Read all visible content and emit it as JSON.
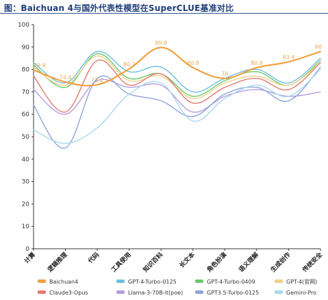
{
  "title": "图：Baichuan 4与国外代表性模型在SuperCLUE基准对比",
  "colors": {
    "title": "#1f3d7a",
    "rule": "#2b4f8f"
  },
  "chart_data": {
    "type": "line",
    "title": "图：Baichuan 4与国外代表性模型在SuperCLUE基准对比",
    "xlabel": "",
    "ylabel": "",
    "ylim": [
      0,
      100
    ],
    "yticks": [
      0,
      10,
      20,
      30,
      40,
      50,
      60,
      70,
      80,
      90,
      100
    ],
    "grid": false,
    "legend_position": "bottom",
    "categories": [
      "计算",
      "逻辑推理",
      "代码",
      "工具使用",
      "知识百科",
      "长文本",
      "角色扮演",
      "语义理解",
      "生成创作",
      "传统安全"
    ],
    "series": [
      {
        "name": "Baichuan4",
        "color": "#f0a040",
        "width": 2.2,
        "values": [
          79.8,
          74.4,
          73.2,
          80.2,
          89.8,
          80.8,
          76,
          80.8,
          83.4,
          88
        ],
        "labels": [
          "79.8",
          "74.4",
          "73.2",
          "80.2",
          "89.8",
          "80.8",
          "76",
          "80.8",
          "83.4",
          "88"
        ]
      },
      {
        "name": "GPT-4-Turbo-0125",
        "color": "#6bbde3",
        "width": 1.4,
        "values": [
          83,
          74,
          88,
          79,
          81,
          70,
          76,
          80,
          74,
          85
        ]
      },
      {
        "name": "GPT-4-Turbo-0409",
        "color": "#6cc86a",
        "width": 1.4,
        "values": [
          82,
          72,
          87,
          76,
          78,
          68,
          75,
          79,
          73,
          84
        ]
      },
      {
        "name": "GPT-4(官网)",
        "color": "#f0d08a",
        "width": 1.4,
        "values": [
          81,
          73,
          86,
          75,
          77,
          67,
          74,
          77,
          73,
          83
        ]
      },
      {
        "name": "Claude3-Opus",
        "color": "#e17a6e",
        "width": 1.4,
        "values": [
          77,
          61,
          84,
          73,
          78,
          65,
          72,
          76,
          71,
          83
        ]
      },
      {
        "name": "Llama-3-70B-it(poe)",
        "color": "#b49be0",
        "width": 1.4,
        "values": [
          71,
          60,
          75,
          72,
          73,
          61,
          68,
          71,
          68,
          70
        ]
      },
      {
        "name": "GPT3.5-Turbo-0125",
        "color": "#8fa3da",
        "width": 1.4,
        "values": [
          64,
          45,
          76,
          69,
          66,
          59,
          69,
          72,
          66,
          81
        ]
      },
      {
        "name": "Gemini-Pro",
        "color": "#a8d8ec",
        "width": 1.4,
        "values": [
          53,
          47,
          54,
          69,
          74,
          57,
          67,
          73,
          68,
          80
        ]
      }
    ]
  }
}
